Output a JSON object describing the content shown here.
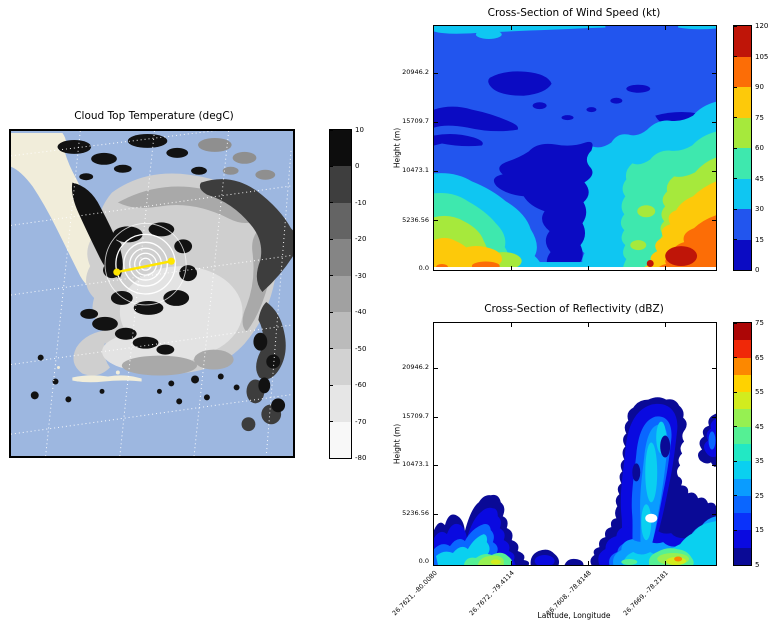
{
  "map_panel": {
    "title": "Cloud Top Temperature (degC)",
    "colorbar_ticks": [
      "10",
      "0",
      "-10",
      "-20",
      "-30",
      "-40",
      "-50",
      "-60",
      "-70",
      "-80"
    ],
    "colorbar_colors": [
      "#f8f8f8",
      "#e6e6e6",
      "#d2d2d2",
      "#bbbbbb",
      "#a1a1a1",
      "#858585",
      "#646464",
      "#3e3e3e",
      "#0d0d0d"
    ],
    "colors": {
      "ocean": "#9db7e0",
      "land": "#f1edda",
      "cloud_light": "#cfcfcf",
      "cloud_lighter": "#e3e3e3",
      "cloud_mid": "#a9a9a9",
      "cloud_dark": "#3d3d3d",
      "cloud_gray": "#8f8f8f",
      "cloud_black": "#121212",
      "graticule": "#ffffff",
      "rings": "#ffffff",
      "transect": "#ffe600"
    }
  },
  "wind_panel": {
    "title": "Cross-Section of Wind Speed (kt)",
    "ylabel": "Height (m)",
    "yticks": [
      "20946.2",
      "15709.7",
      "10473.1",
      "5236.56",
      "0.0"
    ],
    "colorbar_ticks": [
      "120",
      "105",
      "90",
      "75",
      "60",
      "45",
      "30",
      "15",
      "0"
    ],
    "palette": [
      "#0b0bc3",
      "#2255ee",
      "#0fc6f2",
      "#3ee8ae",
      "#a6e93c",
      "#fdc90a",
      "#fc6d06",
      "#bf1508"
    ]
  },
  "refl_panel": {
    "title": "Cross-Section of Reflectivity (dBZ)",
    "ylabel": "Height (m)",
    "xlabel": "Latitude, Longitude",
    "yticks": [
      "20946.2",
      "15709.7",
      "10473.1",
      "5236.56",
      "0.0"
    ],
    "xticks": [
      "26.7621, -80.0080",
      "26.7672, -79.4114",
      "26.7608, -78.8148",
      "26.7669, -78.2181"
    ],
    "colorbar_ticks": [
      "75",
      "65",
      "55",
      "45",
      "35",
      "25",
      "15",
      "5"
    ],
    "palette": [
      "#0a0a96",
      "#0a0ae0",
      "#0a32fa",
      "#0a66ff",
      "#0a9cff",
      "#0ad0f0",
      "#22e8c4",
      "#55f094",
      "#96f052",
      "#d2ec1e",
      "#ffd200",
      "#fc8800",
      "#f02808",
      "#ac0606"
    ]
  },
  "chart_data": [
    {
      "type": "heatmap",
      "title": "Cloud Top Temperature (degC)",
      "colorbar_ticks": [
        10,
        0,
        -10,
        -20,
        -30,
        -40,
        -50,
        -60,
        -70,
        -80
      ],
      "colormap": "grayscale, black = 10 degC (warm) to white = -80 degC (cold)",
      "overlays": [
        "beige Florida landmass and ocean basemap",
        "white dotted latitude-longitude graticule",
        "white concentric range rings at storm center",
        "yellow cross-section transect line with two endpoint dots"
      ]
    },
    {
      "type": "heatmap",
      "title": "Cross-Section of Wind Speed (kt)",
      "ylabel": "Height (m)",
      "yticks": [
        0.0,
        5236.56,
        10473.1,
        15709.7,
        20946.2
      ],
      "ylim": [
        0,
        25970
      ],
      "levels": [
        0,
        15,
        30,
        45,
        60,
        75,
        90,
        105,
        120
      ],
      "legend_position": "right colorbar",
      "x_categories": [
        "26.7621, -80.0080",
        "26.7672, -79.4114",
        "26.7608, -78.8148",
        "26.7669, -78.2181"
      ],
      "values_approx_kt_rows_top_to_bottom": [
        [
          30,
          20,
          20,
          20,
          20,
          20,
          20,
          25
        ],
        [
          20,
          8,
          20,
          20,
          20,
          8,
          20,
          20
        ],
        [
          8,
          20,
          20,
          20,
          8,
          20,
          30,
          20
        ],
        [
          20,
          25,
          20,
          8,
          8,
          30,
          50,
          60
        ],
        [
          40,
          50,
          35,
          8,
          20,
          45,
          70,
          85
        ],
        [
          65,
          85,
          60,
          8,
          35,
          60,
          95,
          110
        ]
      ]
    },
    {
      "type": "heatmap",
      "title": "Cross-Section of Reflectivity (dBZ)",
      "xlabel": "Latitude, Longitude",
      "ylabel": "Height (m)",
      "yticks": [
        0.0,
        5236.56,
        10473.1,
        15709.7,
        20946.2
      ],
      "ylim": [
        0,
        25970
      ],
      "levels": [
        5,
        10,
        15,
        20,
        25,
        30,
        35,
        40,
        45,
        50,
        55,
        60,
        65,
        70,
        75
      ],
      "legend_position": "right colorbar",
      "x_categories": [
        "26.7621, -80.0080",
        "26.7672, -79.4114",
        "26.7608, -78.8148",
        "26.7669, -78.2181"
      ],
      "values_approx_dBZ_rows_top_to_bottom": [
        [
          0,
          0,
          0,
          0,
          0,
          0,
          0,
          0
        ],
        [
          0,
          0,
          0,
          0,
          0,
          0,
          12,
          8
        ],
        [
          0,
          0,
          0,
          0,
          0,
          14,
          18,
          12
        ],
        [
          0,
          6,
          0,
          0,
          0,
          18,
          12,
          25
        ],
        [
          12,
          22,
          8,
          0,
          0,
          22,
          28,
          32
        ],
        [
          22,
          42,
          18,
          6,
          10,
          30,
          48,
          38
        ]
      ]
    }
  ]
}
